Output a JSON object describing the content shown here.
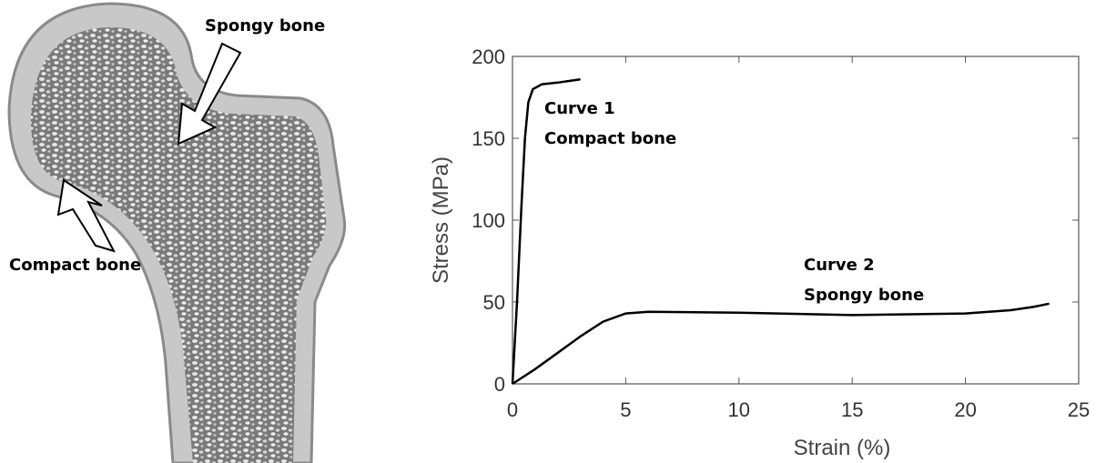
{
  "diagram": {
    "labels": [
      "Spongy bone",
      "Compact bone"
    ]
  },
  "chart_data": {
    "type": "line",
    "xlabel": "Strain (%)",
    "ylabel": "Stress (MPa)",
    "xlim": [
      0,
      25
    ],
    "ylim": [
      0,
      200
    ],
    "xticks": [
      0,
      5,
      10,
      15,
      20,
      25
    ],
    "yticks": [
      0,
      50,
      100,
      150,
      200
    ],
    "series": [
      {
        "name": "Curve 1",
        "description": "Compact bone",
        "color": "#000000",
        "x": [
          0,
          0.2,
          0.4,
          0.55,
          0.7,
          0.9,
          1.3,
          2,
          3
        ],
        "values": [
          0,
          50,
          110,
          150,
          172,
          180,
          183,
          184,
          186
        ]
      },
      {
        "name": "Curve 2",
        "description": "Spongy bone",
        "color": "#000000",
        "x": [
          0,
          1,
          2,
          3,
          4,
          5,
          6,
          10,
          15,
          20,
          22,
          23,
          23.7
        ],
        "values": [
          0,
          9,
          19,
          29,
          38,
          43,
          44,
          43.5,
          42,
          43,
          45,
          47,
          49
        ]
      }
    ]
  }
}
